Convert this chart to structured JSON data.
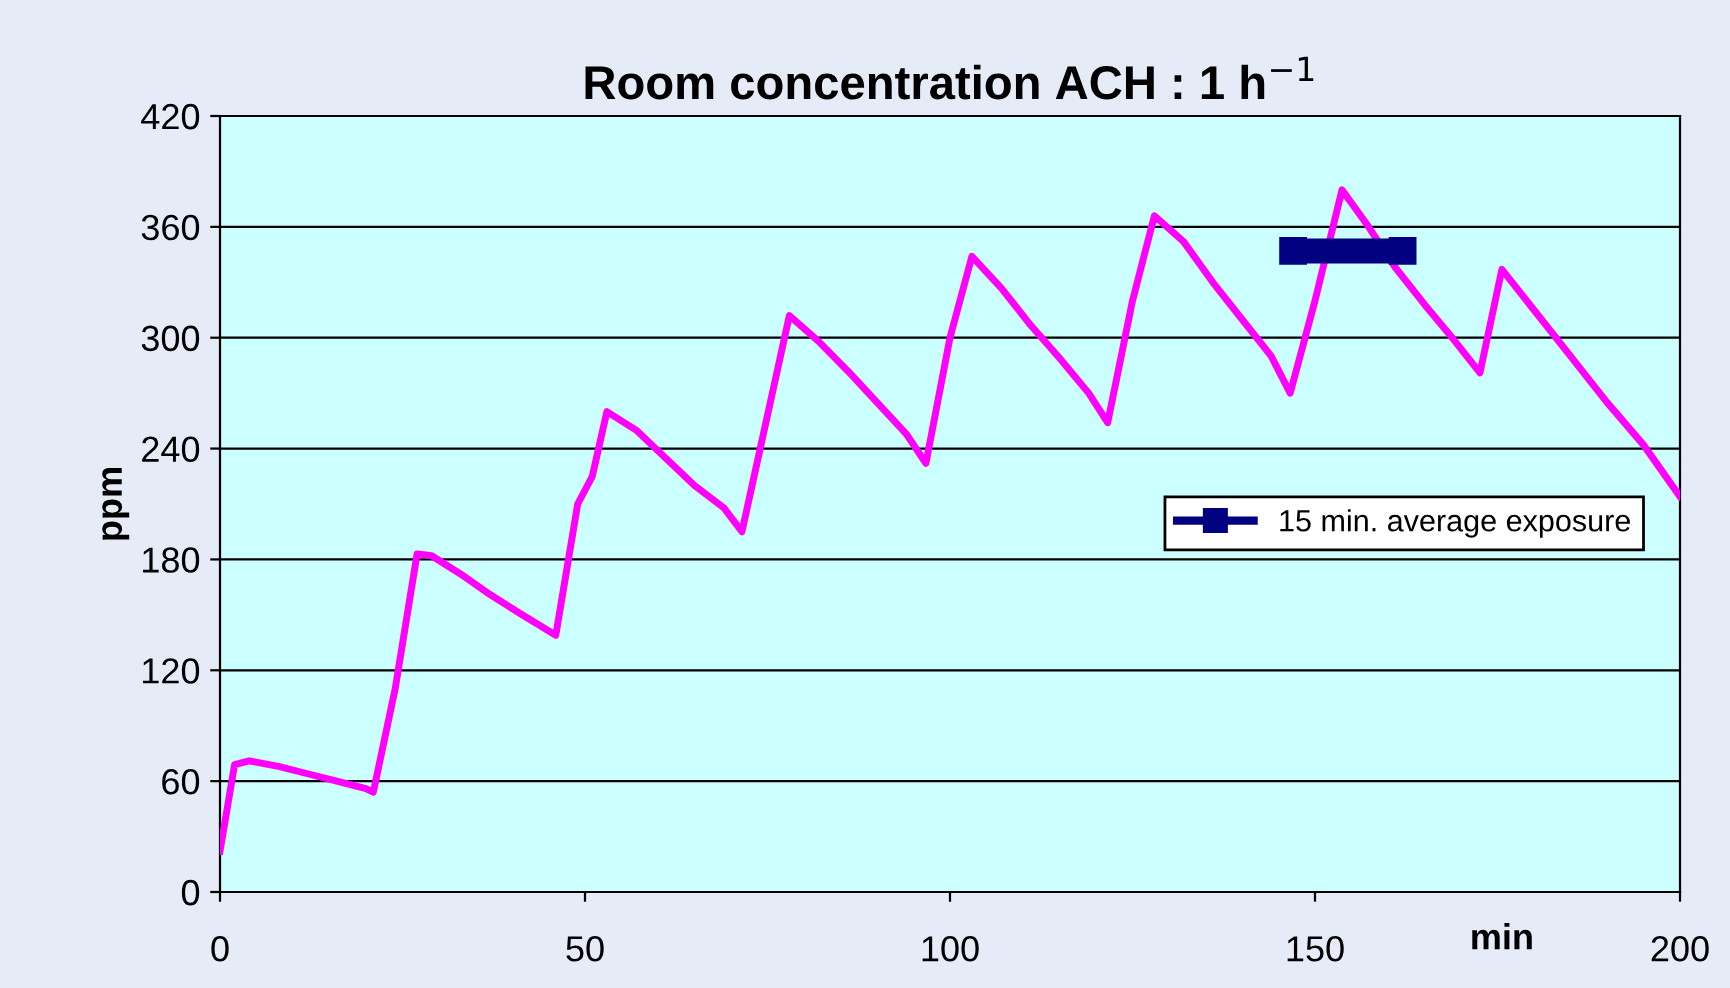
{
  "chart_data": {
    "type": "line",
    "title": "Room concentration ACH : 1 h$^{−1}$",
    "xlabel": "min",
    "ylabel": "ppm",
    "xlim": [
      0,
      200
    ],
    "xticks": [
      0,
      50,
      100,
      150,
      200
    ],
    "ylim": [
      0,
      420
    ],
    "yticks": [
      0,
      60,
      120,
      180,
      240,
      300,
      360,
      420
    ],
    "grid": "y",
    "legend": "right",
    "series": [
      {
        "color": "#ff00ff",
        "marker": "none",
        "x": [
          0,
          2,
          4,
          8,
          12,
          16,
          20,
          21,
          24,
          27,
          29,
          33,
          37,
          41,
          46,
          49,
          51,
          53,
          57,
          61,
          65,
          69,
          71.5,
          74,
          78,
          82,
          86,
          90,
          94,
          96.7,
          100,
          103,
          107,
          111,
          115,
          119,
          121.6,
          125,
          128,
          132,
          136,
          140,
          144,
          146.6,
          150,
          153.7,
          157,
          161,
          165,
          169,
          172.6,
          175.6,
          180,
          185,
          190,
          195,
          200
        ],
        "values": [
          22,
          69,
          71,
          68,
          64,
          60,
          56,
          54,
          110,
          183,
          182,
          172,
          161,
          151,
          139,
          210,
          225,
          260,
          250,
          235,
          220,
          208,
          195,
          240,
          312,
          298,
          282,
          265,
          248,
          232,
          300,
          344,
          327,
          307,
          289,
          270,
          254,
          320,
          366,
          352,
          330,
          310,
          290,
          270,
          320,
          380,
          362,
          338,
          318,
          299,
          281,
          337,
          315,
          290,
          265,
          242,
          214
        ]
      },
      {
        "name": "15 min. average exposure",
        "color": "#000080",
        "marker": "square",
        "x": [
          147,
          162
        ],
        "values": [
          347,
          347
        ]
      }
    ]
  }
}
